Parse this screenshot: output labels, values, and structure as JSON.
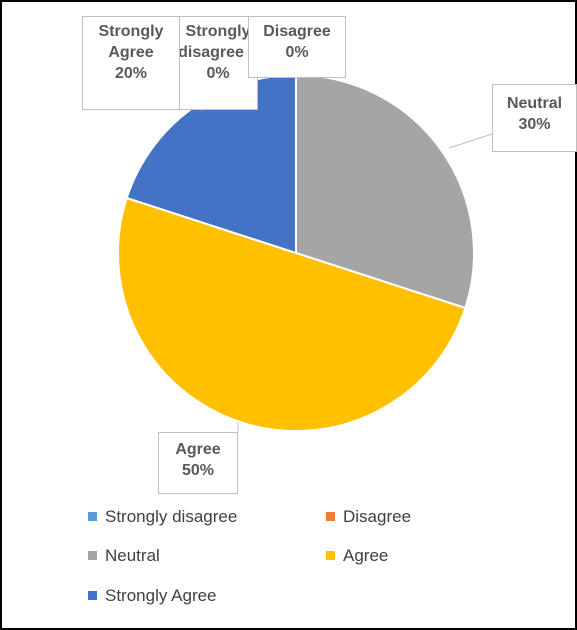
{
  "chart_data": {
    "type": "pie",
    "title": "",
    "slices": [
      {
        "name": "Strongly disagree",
        "value": 0,
        "color": "#5B9BD5"
      },
      {
        "name": "Disagree",
        "value": 0,
        "color": "#ED7D31"
      },
      {
        "name": "Neutral",
        "value": 30,
        "color": "#A5A5A5"
      },
      {
        "name": "Agree",
        "value": 50,
        "color": "#FFC000"
      },
      {
        "name": "Strongly Agree",
        "value": 20,
        "color": "#4472C4"
      }
    ],
    "data_labels": [
      {
        "line1": "Strongly",
        "line2": "disagree",
        "line3": "0%"
      },
      {
        "line1": "Disagree",
        "line2": "0%"
      },
      {
        "line1": "Neutral",
        "line2": "30%"
      },
      {
        "line1": "Agree",
        "line2": "50%"
      },
      {
        "line1": "Strongly",
        "line2": "Agree",
        "line3": "20%"
      }
    ],
    "legend": {
      "position": "bottom",
      "items": [
        {
          "label": "Strongly disagree",
          "color": "#5B9BD5"
        },
        {
          "label": "Disagree",
          "color": "#ED7D31"
        },
        {
          "label": "Neutral",
          "color": "#A5A5A5"
        },
        {
          "label": "Agree",
          "color": "#FFC000"
        },
        {
          "label": "Strongly Agree",
          "color": "#4472C4"
        }
      ]
    }
  }
}
